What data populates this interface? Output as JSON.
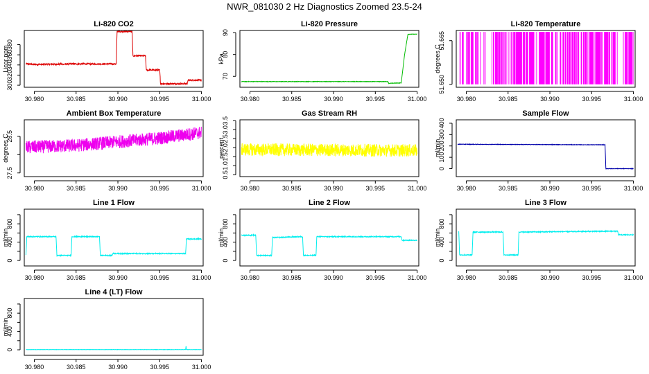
{
  "title": "NWR_081030  2 Hz Diagnostics Zoomed 23.5-24",
  "chart_data": [
    {
      "type": "line",
      "title": "Li-820 CO2",
      "ylabel": "Licor ppm",
      "color": "#dd0000",
      "xlim": [
        30.9788,
        31.0002
      ],
      "ylim": [
        296,
        408
      ],
      "xticks": [
        30.98,
        30.985,
        30.99,
        30.995,
        31.0
      ],
      "xtick_labels": [
        "30.980",
        "30.985",
        "30.990",
        "30.995",
        "31.000"
      ],
      "yticks": [
        300,
        320,
        340,
        360,
        380
      ],
      "ytick_labels": [
        "300",
        "320",
        "340",
        "360",
        "380"
      ],
      "x": [
        30.979,
        30.98,
        30.985,
        30.9898,
        30.9899,
        30.9917,
        30.9918,
        30.9933,
        30.9934,
        30.995,
        30.9951,
        30.9983,
        30.9984,
        31.0
      ],
      "y": [
        342,
        341,
        342,
        342,
        406,
        406,
        358,
        358,
        330,
        330,
        303,
        303,
        310,
        310
      ],
      "noise": 1.5
    },
    {
      "type": "line",
      "title": "Li-820 Pressure",
      "ylabel": "kPa",
      "color": "#00bb00",
      "xlim": [
        30.9788,
        31.0002
      ],
      "ylim": [
        65,
        91
      ],
      "xticks": [
        30.98,
        30.985,
        30.99,
        30.995,
        31.0
      ],
      "xtick_labels": [
        "30.980",
        "30.985",
        "30.990",
        "30.995",
        "31.000"
      ],
      "yticks": [
        70,
        80,
        90
      ],
      "ytick_labels": [
        "70",
        "80",
        "90"
      ],
      "x": [
        30.979,
        30.9965,
        30.9966,
        30.9981,
        30.9985,
        30.9989,
        31.0
      ],
      "y": [
        67.6,
        67.6,
        66.8,
        67.0,
        80,
        89.3,
        89.3
      ],
      "noise": 0.1
    },
    {
      "type": "bars",
      "title": "Li-820 Temperature",
      "ylabel": "degrees C",
      "color": "#ff00ff",
      "xlim": [
        30.9788,
        31.0002
      ],
      "ylim": [
        51.649,
        51.6685
      ],
      "xticks": [
        30.98,
        30.985,
        30.99,
        30.995,
        31.0
      ],
      "xtick_labels": [
        "30.980",
        "30.985",
        "30.990",
        "30.995",
        "31.000"
      ],
      "yticks": [
        51.65,
        51.665
      ],
      "ytick_labels": [
        "51.650",
        "51.665"
      ],
      "low": 51.65,
      "high": 51.668
    },
    {
      "type": "line",
      "title": "Ambient Box Temperature",
      "ylabel": "degrees C",
      "color": "#ee00ee",
      "xlim": [
        30.9788,
        31.0002
      ],
      "ylim": [
        27.4,
        28.95
      ],
      "xticks": [
        30.98,
        30.985,
        30.99,
        30.995,
        31.0
      ],
      "xtick_labels": [
        "30.980",
        "30.985",
        "30.990",
        "30.995",
        "31.000"
      ],
      "yticks": [
        27.5,
        28.0,
        28.5
      ],
      "ytick_labels": [
        "27.5",
        "",
        "28.5"
      ],
      "x": [
        30.979,
        30.985,
        30.99,
        30.995,
        31.0
      ],
      "y": [
        28.2,
        28.25,
        28.35,
        28.45,
        28.6
      ],
      "noise": 0.18
    },
    {
      "type": "line",
      "title": "Gas Stream RH",
      "ylabel": "percent",
      "color": "#ffff00",
      "xlim": [
        30.9788,
        31.0002
      ],
      "ylim": [
        0.4,
        3.55
      ],
      "xticks": [
        30.98,
        30.985,
        30.99,
        30.995,
        31.0
      ],
      "xtick_labels": [
        "30.980",
        "30.985",
        "30.990",
        "30.995",
        "31.000"
      ],
      "yticks": [
        0.5,
        1.0,
        1.5,
        2.0,
        2.5,
        3.0,
        3.5
      ],
      "ytick_labels": [
        "0.5",
        "1.0",
        "1.5",
        "2.0",
        "2.5",
        "3.0",
        "3.5"
      ],
      "x": [
        30.979,
        31.0
      ],
      "y": [
        1.9,
        1.85
      ],
      "noise": 0.35
    },
    {
      "type": "line",
      "title": "Sample Flow",
      "ylabel": "ml/min",
      "color": "#0000aa",
      "xlim": [
        30.9788,
        31.0002
      ],
      "ylim": [
        -70,
        430
      ],
      "xticks": [
        30.98,
        30.985,
        30.99,
        30.995,
        31.0
      ],
      "xtick_labels": [
        "30.980",
        "30.985",
        "30.990",
        "30.995",
        "31.000"
      ],
      "yticks": [
        0,
        100,
        200,
        300,
        400
      ],
      "ytick_labels": [
        "0",
        "100",
        "200",
        "300",
        "400"
      ],
      "x": [
        30.979,
        30.9966,
        30.9967,
        31.0
      ],
      "y": [
        215,
        210,
        0,
        0
      ],
      "noise": 2
    },
    {
      "type": "line",
      "title": "Line 1 Flow",
      "ylabel": "ml/min",
      "color": "#00eeee",
      "xlim": [
        30.9788,
        31.0002
      ],
      "ylim": [
        -120,
        1120
      ],
      "xticks": [
        30.98,
        30.985,
        30.99,
        30.995,
        31.0
      ],
      "xtick_labels": [
        "30.980",
        "30.985",
        "30.990",
        "30.995",
        "31.000"
      ],
      "yticks": [
        0,
        200,
        400,
        600,
        800,
        1000
      ],
      "ytick_labels": [
        "0",
        "",
        "400",
        "",
        "800",
        ""
      ],
      "x": [
        30.979,
        30.9791,
        30.9826,
        30.9827,
        30.9844,
        30.9845,
        30.9878,
        30.9879,
        30.9893,
        30.9894,
        30.9981,
        30.9982,
        31.0
      ],
      "y": [
        130,
        520,
        520,
        110,
        110,
        520,
        520,
        110,
        110,
        150,
        150,
        470,
        470
      ],
      "noise": 10
    },
    {
      "type": "line",
      "title": "Line 2 Flow",
      "ylabel": "ml/min",
      "color": "#00eeee",
      "xlim": [
        30.9788,
        31.0002
      ],
      "ylim": [
        -120,
        1120
      ],
      "xticks": [
        30.98,
        30.985,
        30.99,
        30.995,
        31.0
      ],
      "xtick_labels": [
        "30.980",
        "30.985",
        "30.990",
        "30.995",
        "31.000"
      ],
      "yticks": [
        0,
        200,
        400,
        600,
        800,
        1000
      ],
      "ytick_labels": [
        "0",
        "",
        "400",
        "",
        "800",
        ""
      ],
      "x": [
        30.979,
        30.9807,
        30.9808,
        30.9826,
        30.9827,
        30.9863,
        30.9864,
        30.9879,
        30.988,
        30.9981,
        30.9982,
        31.0
      ],
      "y": [
        550,
        550,
        110,
        110,
        500,
        520,
        110,
        110,
        520,
        520,
        440,
        440
      ],
      "noise": 10
    },
    {
      "type": "line",
      "title": "Line 3 Flow",
      "ylabel": "ml/min",
      "color": "#00eeee",
      "xlim": [
        30.9788,
        31.0002
      ],
      "ylim": [
        -120,
        1120
      ],
      "xticks": [
        30.98,
        30.985,
        30.99,
        30.995,
        31.0
      ],
      "xtick_labels": [
        "30.980",
        "30.985",
        "30.990",
        "30.995",
        "31.000"
      ],
      "yticks": [
        0,
        200,
        400,
        600,
        800,
        1000
      ],
      "ytick_labels": [
        "0",
        "",
        "400",
        "",
        "800",
        ""
      ],
      "x": [
        30.9791,
        30.9792,
        30.9807,
        30.9808,
        30.9844,
        30.9845,
        30.9862,
        30.9863,
        30.9981,
        30.9982,
        31.0
      ],
      "y": [
        640,
        120,
        120,
        620,
        620,
        120,
        120,
        620,
        640,
        560,
        560
      ],
      "noise": 10
    },
    {
      "type": "line",
      "title": "Line 4 (LT) Flow",
      "ylabel": "ml/min",
      "color": "#00eeee",
      "xlim": [
        30.9788,
        31.0002
      ],
      "ylim": [
        -120,
        1120
      ],
      "xticks": [
        30.98,
        30.985,
        30.99,
        30.995,
        31.0
      ],
      "xtick_labels": [
        "30.980",
        "30.985",
        "30.990",
        "30.995",
        "31.000"
      ],
      "yticks": [
        0,
        200,
        400,
        600,
        800,
        1000
      ],
      "ytick_labels": [
        "0",
        "",
        "400",
        "",
        "800",
        ""
      ],
      "x": [
        30.979,
        30.9981,
        30.99815,
        30.9982,
        31.0
      ],
      "y": [
        5,
        5,
        80,
        5,
        5
      ],
      "noise": 3
    }
  ]
}
